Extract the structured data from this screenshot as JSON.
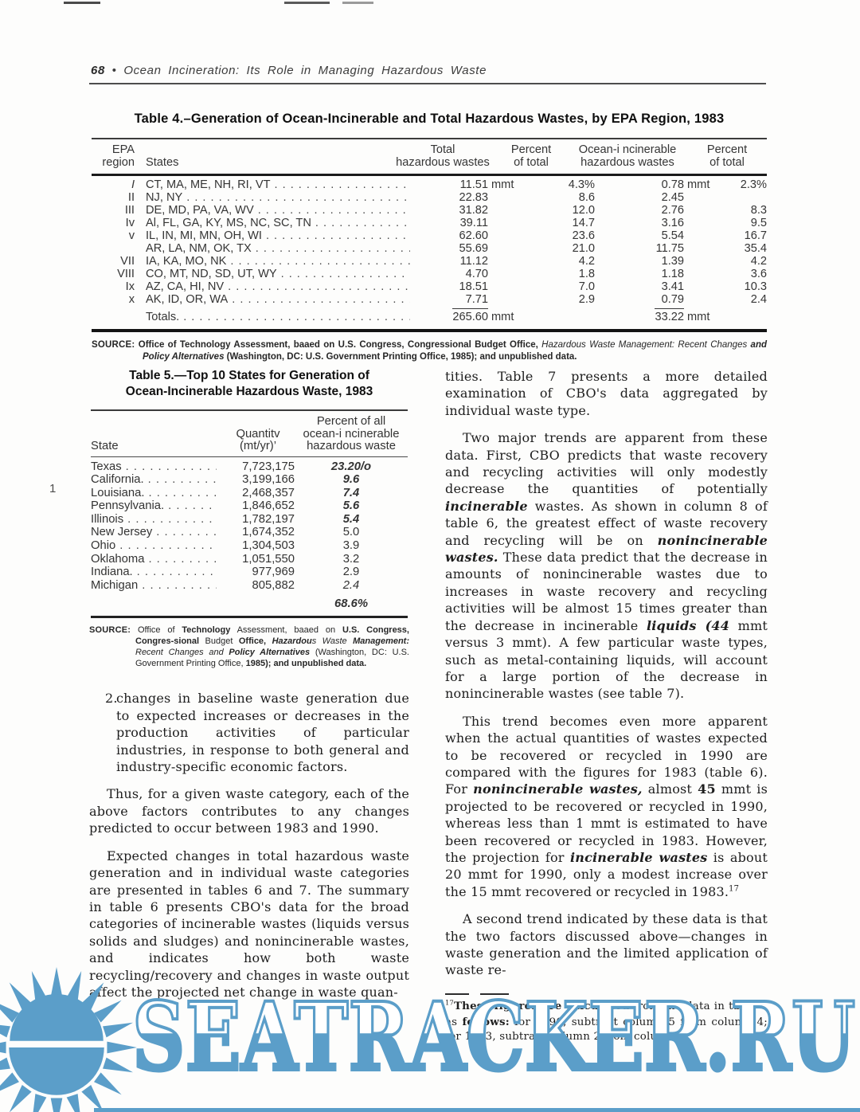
{
  "page": {
    "number": "68",
    "bullet": "•",
    "running_title": "Ocean Incineration: Its Role in Managing Hazardous Waste",
    "margin_note": "1"
  },
  "misc": {
    "leader": ". . . . . . . . . . . . . . . . . . . . . . . . . . . . . . . . . . . . . . . . . . . . . . . . . . . ."
  },
  "table4": {
    "title": "Table 4.–Generation of Ocean-Incinerable and Total Hazardous Wastes, by EPA Region, 1983",
    "headers": {
      "region": "EPA\nregion",
      "states": "States",
      "total": "Total\nhazardous wastes",
      "pct": "Percent\nof total",
      "ocean": "Ocean-i ncinerable\nhazardous wastes",
      "pct2": "Percent\nof total"
    },
    "rows": [
      {
        "region": "I",
        "em": true,
        "states": "CT, MA, ME, NH, RI, VT",
        "total": "11.51",
        "unit": "mmt",
        "pct": "4.3%",
        "ocean": "0.78",
        "ounit": "mmt",
        "pct2": "2.3%"
      },
      {
        "region": "II",
        "em": false,
        "states": "NJ, NY",
        "total": "22.83",
        "unit": "",
        "pct": "8.6",
        "ocean": "2.45",
        "ounit": "",
        "pct2": ""
      },
      {
        "region": "III",
        "em": false,
        "states": "DE, MD, PA, VA, WV",
        "total": "31.82",
        "unit": "",
        "pct": "12.0",
        "ocean": "2.76",
        "ounit": "",
        "pct2": "8.3"
      },
      {
        "region": "Iv",
        "em": false,
        "states": "Al, FL, GA, KY, MS, NC, SC, TN",
        "total": "39.11",
        "unit": "",
        "pct": "14.7",
        "ocean": "3.16",
        "ounit": "",
        "pct2": "9.5"
      },
      {
        "region": "v",
        "em": false,
        "states": "IL, IN, MI, MN, OH, WI",
        "total": "62.60",
        "unit": "",
        "pct": "23.6",
        "ocean": "5.54",
        "ounit": "",
        "pct2": "16.7"
      },
      {
        "region": "",
        "em": false,
        "states": "AR, LA, NM, OK, TX",
        "total": "55.69",
        "unit": "",
        "pct": "21.0",
        "ocean": "11.75",
        "ounit": "",
        "pct2": "35.4"
      },
      {
        "region": "VII",
        "em": false,
        "states": "IA, KA, MO, NK",
        "total": "11.12",
        "unit": "",
        "pct": "4.2",
        "ocean": "1.39",
        "ounit": "",
        "pct2": "4.2"
      },
      {
        "region": "VIII",
        "em": false,
        "states": "CO, MT, ND, SD, UT, WY",
        "total": "4.70",
        "unit": "",
        "pct": "1.8",
        "ocean": "1.18",
        "ounit": "",
        "pct2": "3.6"
      },
      {
        "region": "Ix",
        "em": false,
        "states": "AZ, CA, HI, NV",
        "total": "18.51",
        "unit": "",
        "pct": "7.0",
        "ocean": "3.41",
        "ounit": "",
        "pct2": "10.3"
      },
      {
        "region": "x",
        "em": false,
        "states": "AK, ID, OR, WA",
        "total": "7.71",
        "unit": "",
        "pct": "2.9",
        "ocean": "0.79",
        "ounit": "",
        "pct2": "2.4"
      }
    ],
    "totals": {
      "label": "Totals.",
      "total": "265.60",
      "unit": "mmt",
      "ocean": "33.22",
      "ounit": "mmt"
    },
    "source_label": "SOURCE:",
    "source": [
      {
        "t": "Office of Technology Assessment, baaed on U.S. Congress, Congressional Budget Office, ",
        "b": true
      },
      {
        "t": "Hazardous Waste Management: Recent Changes ",
        "i": true
      },
      {
        "t": "and Policy Alternatives",
        "i": true,
        "b": true
      },
      {
        "t": " (Washington, DC: U.S. Government Printing Office, ",
        "b": true
      },
      {
        "t": "1985);",
        "b": true
      },
      {
        "t": " and unpublished data.",
        "b": true
      }
    ]
  },
  "table5": {
    "title": "Table 5.—Top 10 States for Generation of\nOcean-Incinerable Hazardous Waste, 1983",
    "headers": {
      "state": "State",
      "qty": "Quantitv\n(mt/yr)’",
      "pct": "Percent of all\nocean-i ncinerable\nhazardous waste"
    },
    "rows": [
      {
        "state": "Texas",
        "qty": "7,723,175",
        "pct": "23.20/o",
        "em": "bi"
      },
      {
        "state": "California.",
        "qty": "3,199,166",
        "pct": "9.6",
        "em": "bi"
      },
      {
        "state": "Louisiana.",
        "qty": "2,468,357",
        "pct": "7.4",
        "em": "bi"
      },
      {
        "state": "Pennsylvania.",
        "qty": "1,846,652",
        "pct": "5.6",
        "em": "bi"
      },
      {
        "state": "Illinois",
        "qty": "1,782,197",
        "pct": "5.4",
        "em": "bi"
      },
      {
        "state": "New Jersey",
        "qty": "1,674,352",
        "pct": "5.0",
        "em": ""
      },
      {
        "state": "Ohio",
        "qty": "1,304,503",
        "pct": "3.9",
        "em": ""
      },
      {
        "state": "Oklahoma",
        "qty": "1,051,550",
        "pct": "3.2",
        "em": ""
      },
      {
        "state": "Indiana.",
        "qty": "977,969",
        "pct": "2.9",
        "em": ""
      },
      {
        "state": "Michigan",
        "qty": "805,882",
        "pct": "2.4",
        "em": "i"
      }
    ],
    "total_pct": "68.6%",
    "source_label": "SOURCE:",
    "source": [
      {
        "t": "Office of "
      },
      {
        "t": "Technology",
        "b": true
      },
      {
        "t": " Assessment, baaed on "
      },
      {
        "t": "U.S. Congress, Congres-sional",
        "b": true
      },
      {
        "t": " Budget "
      },
      {
        "t": "Office,",
        "b": true
      },
      {
        "t": " "
      },
      {
        "t": "Hazardou",
        "b": true,
        "i": true
      },
      {
        "t": "s Waste ",
        "i": true
      },
      {
        "t": "Management:",
        "b": true,
        "i": true
      },
      {
        "t": " Recent Changes ",
        "i": true
      },
      {
        "t": "and ",
        "i": true
      },
      {
        "t": "Policy Alternatives",
        "b": true,
        "i": true
      },
      {
        "t": " (Washington, DC: U.S. Government Printing Office, "
      },
      {
        "t": "1985);",
        "b": true
      },
      {
        "t": " and unpublished data.",
        "b": true
      }
    ]
  },
  "left_column": {
    "item2_number": "2.",
    "item2_text": "changes in baseline waste generation due to expected increases or decreases in the production activities of particular industries, in response to both general and industry-specific economic factors.",
    "para_thus": "Thus, for a given waste category, each of the above factors contributes to any changes predicted to occur between 1983 and 1990.",
    "para_expected": "Expected changes in total hazardous waste generation and in individual waste categories are presented in tables 6 and 7. The summary in table 6 presents CBO's data for the broad categories of incinerable wastes (liquids versus solids and sludges) and nonincinerable wastes, and indicates how both waste recycling/recovery and changes in waste output affect the projected net change in waste quan-"
  },
  "right_column": {
    "para1": [
      {
        "t": "tities. Table 7 presents a more detailed examination of CBO's data aggregated by individual waste type."
      }
    ],
    "para2": [
      {
        "t": "Two major trends are apparent from these data. First, CBO predicts that waste recovery and recycling activities will only modestly decrease the quantities of potentially "
      },
      {
        "t": "incinerable",
        "i": true,
        "b": true
      },
      {
        "t": " wastes. As shown in column 8 of table 6, the greatest effect of waste recovery and recycling will be on "
      },
      {
        "t": "nonincinerable wastes.",
        "i": true,
        "b": true
      },
      {
        "t": " These data predict that the decrease in amounts of nonincinerable wastes due to increases in waste recovery and recycling activities will be almost 15 times greater than the decrease in incinerable "
      },
      {
        "t": "liquids (44",
        "i": true,
        "b": true
      },
      {
        "t": " mmt versus 3 mmt). A few particular waste types, such as metal-containing liquids, will account for a large portion of the decrease in nonincinerable wastes (see table 7)."
      }
    ],
    "para3": [
      {
        "t": "This trend becomes even more apparent when the actual quantities of wastes expected to be recovered or recycled in 1990 are compared with the figures for 1983 (table 6). For "
      },
      {
        "t": "nonincinerable wastes,",
        "i": true,
        "b": true
      },
      {
        "t": " almost "
      },
      {
        "t": "45",
        "b": true
      },
      {
        "t": " mmt is projected to be recovered or recycled in 1990, whereas less than 1 mmt is estimated to have been recovered or recycled in 1983. However, the projection for "
      },
      {
        "t": "incinerable wastes",
        "i": true,
        "b": true
      },
      {
        "t": " is about 20 mmt for 1990, only a modest increase over the 15 mmt recovered or recycled in 1983."
      },
      {
        "t": "17",
        "sup": true
      }
    ],
    "para4": [
      {
        "t": "A second trend indicated by these data is that the two factors discussed above—changes in waste generation and the limited application of waste re-"
      }
    ],
    "footnote": [
      {
        "t": "17",
        "sup": true
      },
      {
        "t": "These figures are calculated",
        "b": true
      },
      {
        "t": " from the data in table 6 as "
      },
      {
        "t": "follows:",
        "b": true
      },
      {
        "t": " for 1990, subtract column 5 from column 4; for 1983, subtract column 2 from column 1."
      }
    ]
  },
  "watermark": {
    "text": "SEATRACKER.RU",
    "color": "#5b9ec9",
    "icon": "sun-icon"
  }
}
